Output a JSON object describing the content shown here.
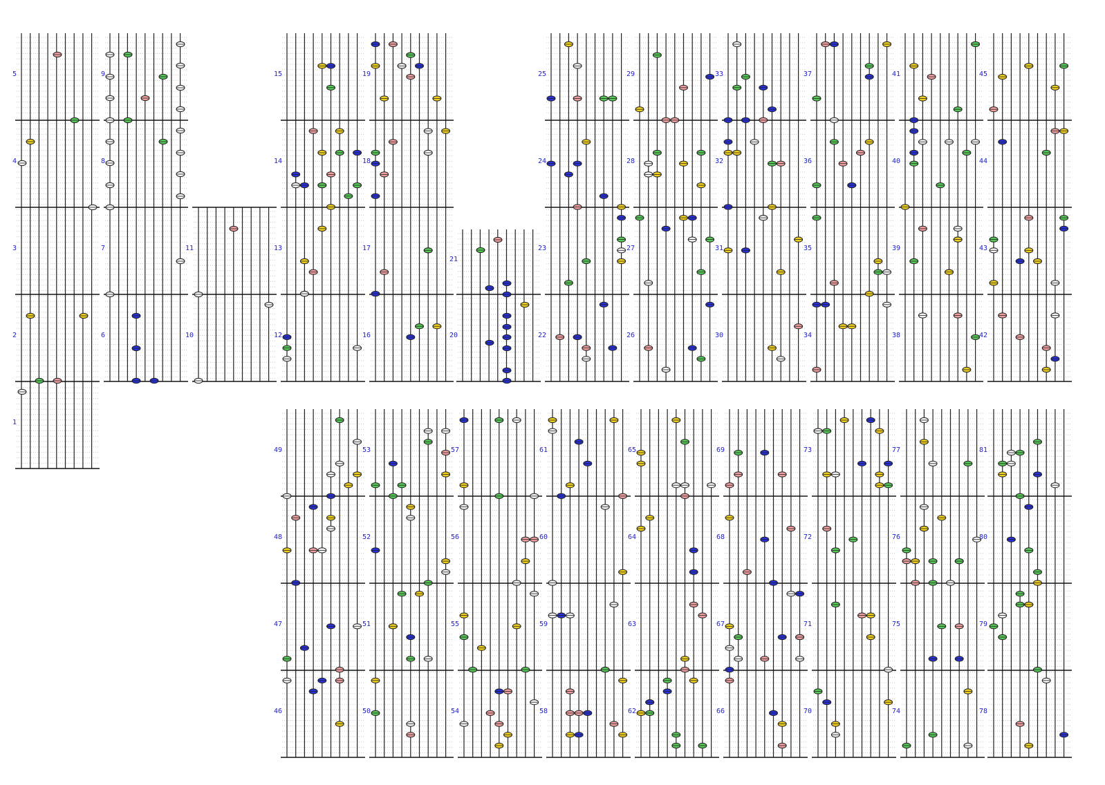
{
  "palette": {
    "yellow": "#f0d020",
    "green": "#58c858",
    "blue": "#2830d8",
    "pink": "#f0a0a0",
    "white": "#f4f4f4",
    "number_color": "#2020d0"
  },
  "row_labels": [
    "1",
    "2",
    "3",
    "4",
    "5",
    "6",
    "7",
    "8",
    "9",
    "10",
    "11",
    "12",
    "13",
    "14",
    "15",
    "16",
    "17",
    "18",
    "19",
    "20",
    "21",
    "22",
    "23",
    "24",
    "25",
    "26",
    "27",
    "28",
    "29",
    "30",
    "31",
    "32",
    "33",
    "34",
    "35",
    "36",
    "37",
    "38",
    "39",
    "40",
    "41",
    "42",
    "43",
    "44",
    "45",
    "46",
    "47",
    "48",
    "49",
    "50",
    "51",
    "52",
    "53",
    "54",
    "55",
    "56",
    "57",
    "58",
    "59",
    "60",
    "61",
    "62",
    "63",
    "64",
    "65",
    "66",
    "67",
    "68",
    "69",
    "70",
    "71",
    "72",
    "73",
    "74",
    "75",
    "76",
    "77",
    "78",
    "79",
    "80",
    "81"
  ]
}
